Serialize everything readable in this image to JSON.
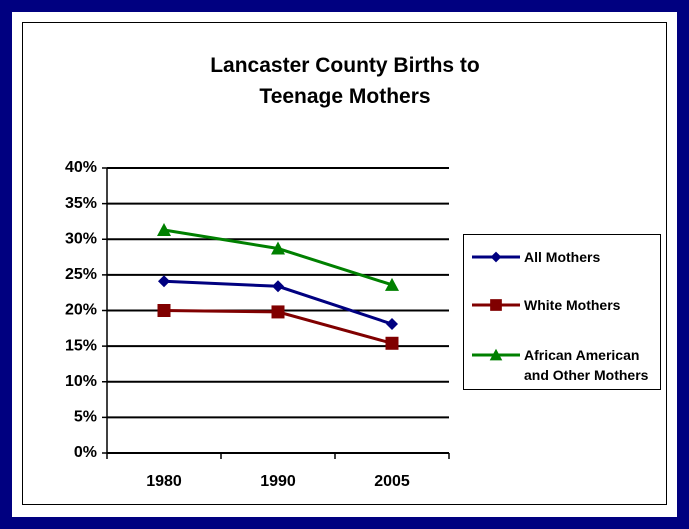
{
  "chart_data": {
    "type": "line",
    "title": "Lancaster County Births to Teenage Mothers",
    "categories": [
      "1980",
      "1990",
      "2005"
    ],
    "series": [
      {
        "name": "All Mothers",
        "color": "#000080",
        "marker": "diamond",
        "values": [
          24.1,
          23.4,
          18.1
        ]
      },
      {
        "name": "White Mothers",
        "color": "#800000",
        "marker": "square",
        "values": [
          20.0,
          19.8,
          15.4
        ]
      },
      {
        "name": "African American and Other Mothers",
        "color": "#008000",
        "marker": "triangle",
        "values": [
          31.3,
          28.7,
          23.6
        ]
      }
    ],
    "ylim": [
      0,
      40
    ],
    "yticks": [
      {
        "value": 0,
        "label": "0%"
      },
      {
        "value": 5,
        "label": "5%"
      },
      {
        "value": 10,
        "label": "10%"
      },
      {
        "value": 15,
        "label": "15%"
      },
      {
        "value": 20,
        "label": "20%"
      },
      {
        "value": 25,
        "label": "25%"
      },
      {
        "value": 30,
        "label": "30%"
      },
      {
        "value": 35,
        "label": "35%"
      },
      {
        "value": 40,
        "label": "40%"
      }
    ],
    "grid": true,
    "legend": "right"
  }
}
